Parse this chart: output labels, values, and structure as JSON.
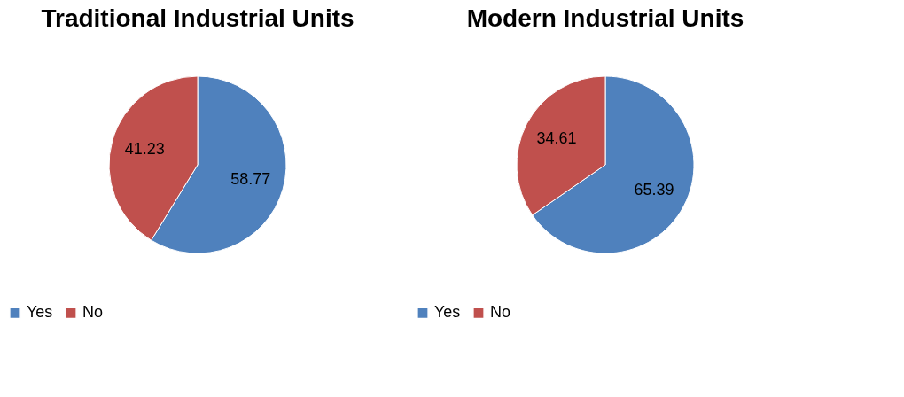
{
  "chart_data": [
    {
      "type": "pie",
      "title": "Traditional Industrial Units",
      "categories": [
        "Yes",
        "No"
      ],
      "values": [
        58.77,
        41.23
      ],
      "colors": [
        "#4f81bd",
        "#c0504d"
      ],
      "data_labels": true,
      "legend": "bottom"
    },
    {
      "type": "pie",
      "title": "Modern Industrial Units",
      "categories": [
        "Yes",
        "No"
      ],
      "values": [
        65.39,
        34.61
      ],
      "colors": [
        "#4f81bd",
        "#c0504d"
      ],
      "data_labels": true,
      "legend": "bottom"
    }
  ]
}
